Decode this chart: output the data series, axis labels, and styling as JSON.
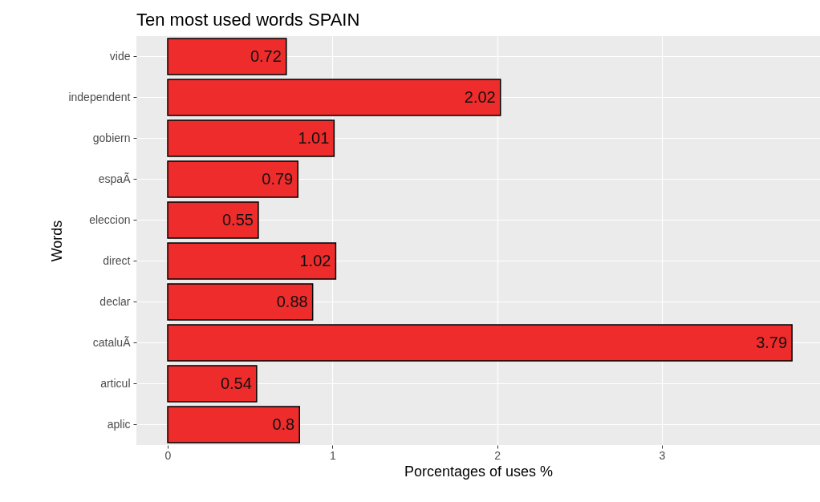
{
  "chart_data": {
    "type": "bar",
    "orientation": "horizontal",
    "title": "Ten most used words SPAIN",
    "xlabel": "Porcentages of uses %",
    "ylabel": "Words",
    "categories": [
      "vide",
      "independent",
      "gobiern",
      "espaÃ",
      "eleccion",
      "direct",
      "declar",
      "cataluÃ",
      "articul",
      "aplic"
    ],
    "values": [
      0.72,
      2.02,
      1.01,
      0.79,
      0.55,
      1.02,
      0.88,
      3.79,
      0.54,
      0.8
    ],
    "color": "#ee2c2c",
    "data_labels": true,
    "grid": true,
    "xlim": [
      -0.19,
      3.96
    ],
    "xticks": [
      0,
      1,
      2,
      3
    ]
  }
}
